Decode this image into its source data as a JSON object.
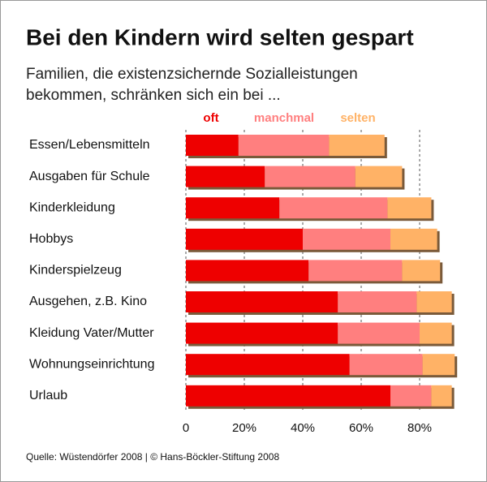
{
  "chart_data": {
    "type": "stacked-barh",
    "title": "Bei den Kindern wird selten gespart",
    "subtitle": [
      "Familien, die existenzsichernde Sozialleistungen",
      "bekommen, schränken sich ein bei ..."
    ],
    "categories": [
      "Essen/Lebensmitteln",
      "Ausgaben für Schule",
      "Kinderkleidung",
      "Hobbys",
      "Kinderspielzeug",
      "Ausgehen, z.B. Kino",
      "Kleidung Vater/Mutter",
      "Wohnungseinrichtung",
      "Urlaub"
    ],
    "series": [
      {
        "name": "oft",
        "color": "#ee0000",
        "values": [
          18,
          27,
          32,
          40,
          42,
          52,
          52,
          56,
          70
        ]
      },
      {
        "name": "manchmal",
        "color": "#ff7f7f",
        "values": [
          31,
          31,
          37,
          30,
          32,
          27,
          28,
          25,
          14
        ]
      },
      {
        "name": "selten",
        "color": "#ffb266",
        "values": [
          19,
          16,
          15,
          16,
          13,
          12,
          11,
          11,
          7
        ]
      }
    ],
    "xlim": [
      0,
      100
    ],
    "xticks": [
      0,
      {
        "value": 20,
        "label": "20%"
      },
      {
        "value": 40,
        "label": "40%"
      },
      {
        "value": 60,
        "label": "60%"
      },
      {
        "value": 80,
        "label": "80%"
      }
    ],
    "grid": true,
    "source": "Quelle: Wüstendörfer 2008 | © Hans-Böckler-Stiftung 2008"
  }
}
